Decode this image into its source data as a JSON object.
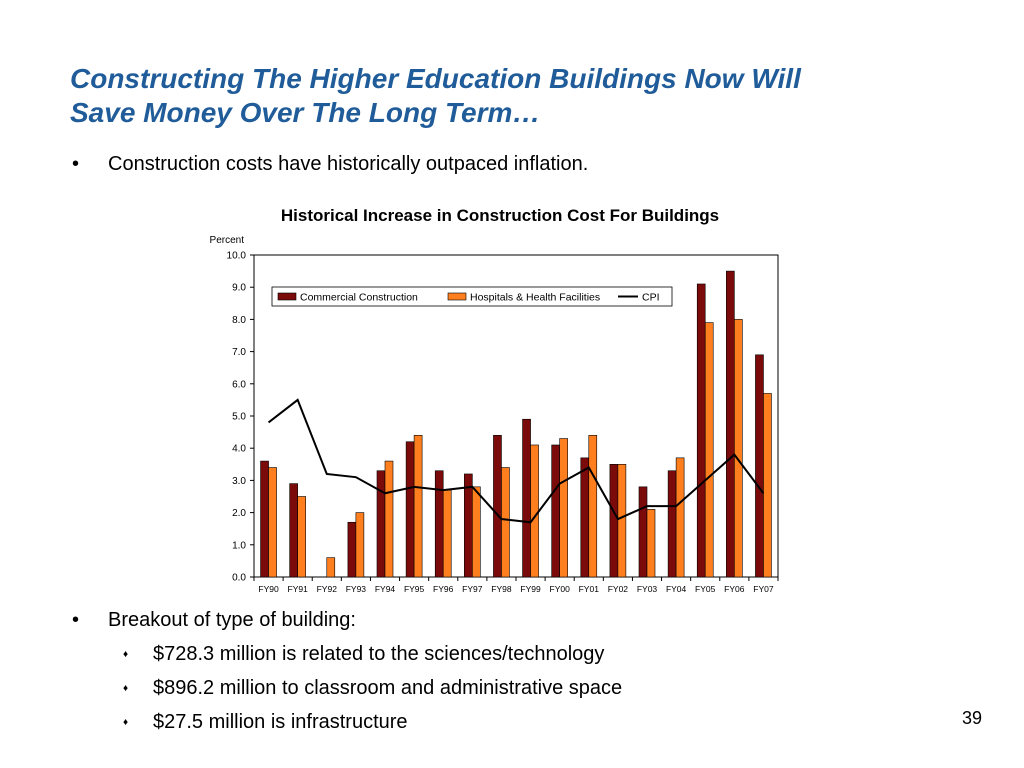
{
  "slide": {
    "title_line1": "Constructing The Higher Education Buildings Now Will",
    "title_line2": "Save Money Over The Long Term…",
    "bullet1": "Construction costs have historically outpaced inflation.",
    "bullet2": "Breakout of type of building:",
    "sub_bullets": [
      "$728.3 million is related to the sciences/technology",
      "$896.2 million to classroom and administrative space",
      "$27.5 million is infrastructure"
    ],
    "page_number": "39",
    "bullet_symbol": "•",
    "sub_bullet_symbol": "♦"
  },
  "chart_data": {
    "type": "bar",
    "title": "Historical Increase in Construction Cost For Buildings",
    "ylabel": "Percent",
    "xlabel": "",
    "ylim": [
      0,
      10
    ],
    "yticks": [
      "0.0",
      "1.0",
      "2.0",
      "3.0",
      "4.0",
      "5.0",
      "6.0",
      "7.0",
      "8.0",
      "9.0",
      "10.0"
    ],
    "categories": [
      "FY90",
      "FY91",
      "FY92",
      "FY93",
      "FY94",
      "FY95",
      "FY96",
      "FY97",
      "FY98",
      "FY99",
      "FY00",
      "FY01",
      "FY02",
      "FY03",
      "FY04",
      "FY05",
      "FY06",
      "FY07"
    ],
    "series": [
      {
        "name": "Commercial Construction",
        "kind": "bar",
        "color": "#7B0A0A",
        "values": [
          3.6,
          2.9,
          0.0,
          1.7,
          3.3,
          4.2,
          3.3,
          3.2,
          4.4,
          4.9,
          4.1,
          3.7,
          3.5,
          2.8,
          3.3,
          9.1,
          9.5,
          6.9
        ]
      },
      {
        "name": "Hospitals & Health Facilities",
        "kind": "bar",
        "color": "#FF7F1E",
        "values": [
          3.4,
          2.5,
          0.6,
          2.0,
          3.6,
          4.4,
          2.7,
          2.8,
          3.4,
          4.1,
          4.3,
          4.4,
          3.5,
          2.1,
          3.7,
          7.9,
          8.0,
          5.7
        ]
      },
      {
        "name": "CPI",
        "kind": "line",
        "color": "#000000",
        "values": [
          4.8,
          5.5,
          3.2,
          3.1,
          2.6,
          2.8,
          2.7,
          2.8,
          1.8,
          1.7,
          2.9,
          3.4,
          1.8,
          2.2,
          2.2,
          3.0,
          3.8,
          2.6
        ]
      }
    ],
    "legend_position": "top-left",
    "grid": false
  }
}
